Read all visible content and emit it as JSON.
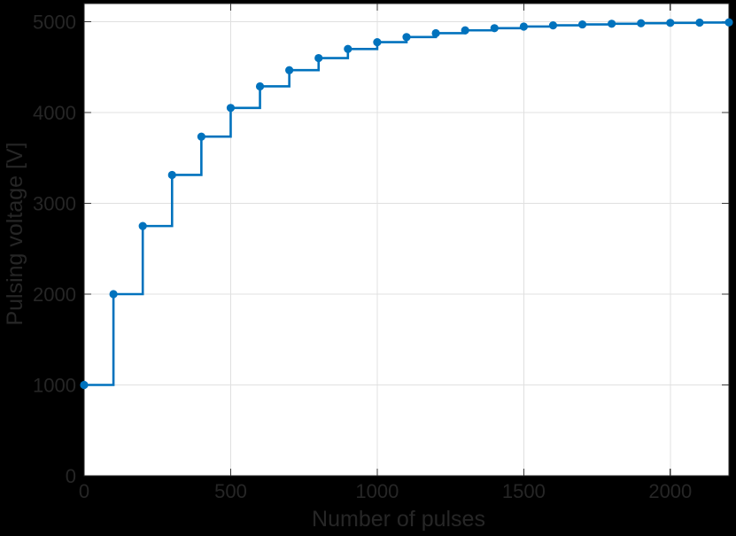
{
  "figure": {
    "background_color": "#000000",
    "plot_background_color": "#ffffff",
    "axis_color": "#262626",
    "tick_color": "#3a3a3a",
    "grid_color": "#e0e0e0",
    "line_color": "#0072bd",
    "marker_color": "#0072bd"
  },
  "chart_data": {
    "type": "line",
    "line_style": "stairs-post",
    "marker": "filled-circle",
    "title": "",
    "xlabel": "Number of pulses",
    "ylabel": "Pulsing voltage [V]",
    "xlim": [
      0,
      2200
    ],
    "ylim": [
      0,
      5200
    ],
    "xticks": [
      0,
      500,
      1000,
      1500,
      2000
    ],
    "yticks": [
      0,
      1000,
      2000,
      3000,
      4000,
      5000
    ],
    "grid": true,
    "legend_position": "none",
    "x": [
      0,
      100,
      200,
      300,
      400,
      500,
      600,
      700,
      800,
      900,
      1000,
      1100,
      1200,
      1300,
      1400,
      1500,
      1600,
      1700,
      1800,
      1900,
      2000,
      2100,
      2200
    ],
    "y": [
      1000,
      2000,
      2750,
      3312.5,
      3734.4,
      4050.8,
      4288.1,
      4466.1,
      4599.5,
      4699.7,
      4774.8,
      4831.1,
      4873.3,
      4905.0,
      4928.7,
      4946.6,
      4959.9,
      4969.9,
      4977.5,
      4983.1,
      4987.3,
      4990.5,
      4992.9
    ]
  }
}
